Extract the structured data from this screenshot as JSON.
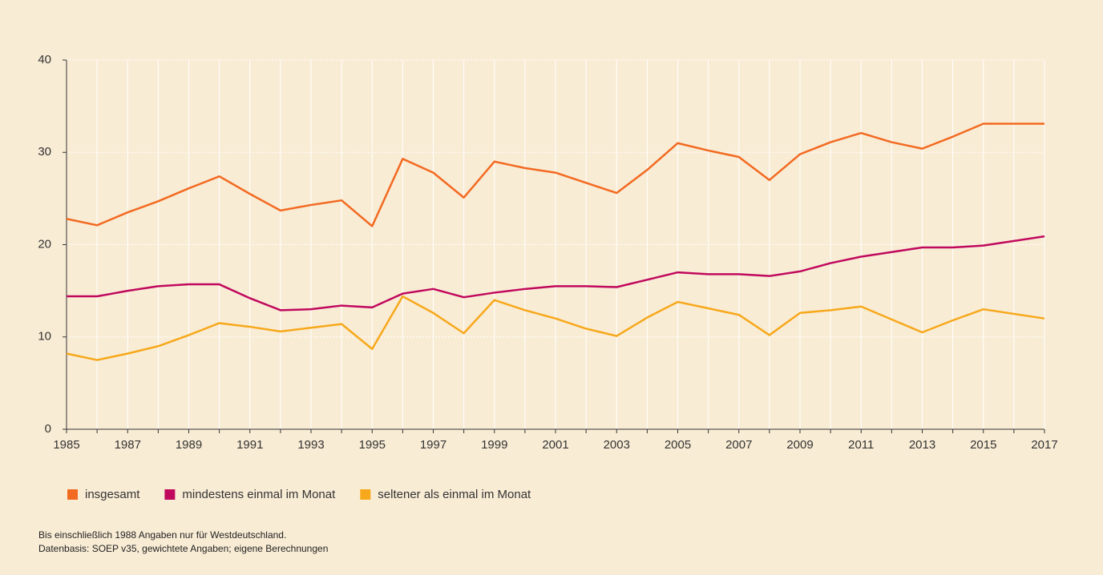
{
  "chart_data": {
    "type": "line",
    "x": [
      1985,
      1986,
      1987,
      1988,
      1989,
      1990,
      1991,
      1992,
      1993,
      1994,
      1995,
      1996,
      1997,
      1998,
      1999,
      2000,
      2001,
      2002,
      2003,
      2004,
      2005,
      2006,
      2007,
      2008,
      2009,
      2010,
      2011,
      2012,
      2013,
      2014,
      2015,
      2016,
      2017
    ],
    "series": [
      {
        "name": "insgesamt",
        "color": "#f26a21",
        "values": [
          22.8,
          22.1,
          23.5,
          24.7,
          26.1,
          27.4,
          25.5,
          23.7,
          24.3,
          24.8,
          22.0,
          29.3,
          27.8,
          25.1,
          29.0,
          28.3,
          27.8,
          26.7,
          25.6,
          28.1,
          31.0,
          30.2,
          29.5,
          27.0,
          29.8,
          31.1,
          32.1,
          31.1,
          30.4,
          31.7,
          33.1,
          33.1,
          33.1
        ]
      },
      {
        "name": "mindestens einmal im Monat",
        "color": "#c0095d",
        "values": [
          14.4,
          14.4,
          15.0,
          15.5,
          15.7,
          15.7,
          14.2,
          12.9,
          13.0,
          13.4,
          13.2,
          14.7,
          15.2,
          14.3,
          14.8,
          15.2,
          15.5,
          15.5,
          15.4,
          16.2,
          17.0,
          16.8,
          16.8,
          16.6,
          17.1,
          18.0,
          18.7,
          19.2,
          19.7,
          19.7,
          19.9,
          20.4,
          20.9
        ]
      },
      {
        "name": "seltener als einmal im Monat",
        "color": "#f7a81b",
        "values": [
          8.2,
          7.5,
          8.2,
          9.0,
          10.2,
          11.5,
          11.1,
          10.6,
          11.0,
          11.4,
          8.7,
          14.4,
          12.6,
          10.4,
          14.0,
          12.9,
          12.0,
          10.9,
          10.1,
          12.1,
          13.8,
          13.1,
          12.4,
          10.2,
          12.6,
          12.9,
          13.3,
          11.9,
          10.5,
          11.8,
          13.0,
          12.5,
          12.0
        ]
      }
    ],
    "xlim": [
      1985,
      2017
    ],
    "xticks": [
      1985,
      1987,
      1989,
      1991,
      1993,
      1995,
      1997,
      1999,
      2001,
      2003,
      2005,
      2007,
      2009,
      2011,
      2013,
      2015,
      2017
    ],
    "x_minor_ticks": [
      1986,
      1988,
      1990,
      1992,
      1994,
      1996,
      1998,
      2000,
      2002,
      2004,
      2006,
      2008,
      2010,
      2012,
      2014,
      2016
    ],
    "ylim": [
      0,
      40
    ],
    "yticks": [
      0,
      10,
      20,
      30,
      40
    ],
    "grid": true,
    "notes": [
      "Bis einschließlich 1988 Angaben nur für Westdeutschland.",
      "Datenbasis: SOEP v35, gewichtete Angaben; eigene Berechnungen"
    ]
  }
}
